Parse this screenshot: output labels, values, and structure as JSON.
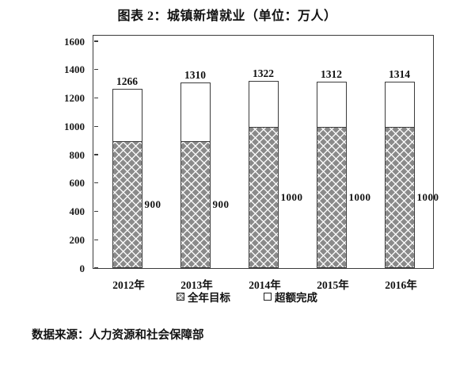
{
  "title": "图表 2：城镇新增就业（单位：万人）",
  "source_note": "数据来源：人力资源和社会保障部",
  "chart_data": {
    "type": "bar",
    "stacked": true,
    "title": "图表 2：城镇新增就业（单位：万人）",
    "unit": "万人",
    "categories": [
      "2012年",
      "2013年",
      "2014年",
      "2015年",
      "2016年"
    ],
    "series": [
      {
        "name": "全年目标",
        "values": [
          900,
          900,
          1000,
          1000,
          1000
        ],
        "fill": "gray-diamond-hatch"
      },
      {
        "name": "超额完成",
        "values": [
          366,
          410,
          322,
          312,
          314
        ],
        "fill": "white"
      }
    ],
    "totals": [
      1266,
      1310,
      1322,
      1312,
      1314
    ],
    "total_labels": [
      "1266",
      "1310",
      "1322",
      "1312",
      "1314"
    ],
    "target_labels": [
      "900",
      "900",
      "1000",
      "1000",
      "1000"
    ],
    "ylim": [
      0,
      1600
    ],
    "yticks": [
      0,
      200,
      400,
      600,
      800,
      1000,
      1200,
      1400,
      1600
    ],
    "grid": false,
    "legend_position": "bottom"
  },
  "legend": {
    "items": [
      {
        "label": "全年目标",
        "swatch": "hatch"
      },
      {
        "label": "超额完成",
        "swatch": "white"
      }
    ]
  },
  "colors": {
    "background": "#ffffff",
    "hatch_base": "#8a8a8a",
    "hatch_line": "#f0f0f0",
    "frame": "#3b3b3b",
    "text": "#111111"
  }
}
